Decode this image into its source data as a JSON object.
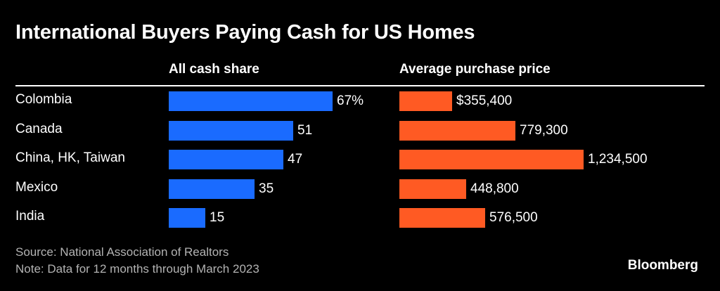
{
  "chart_data": {
    "type": "bar",
    "orientation": "horizontal",
    "title": "International Buyers Paying Cash for US Homes",
    "categories": [
      "Colombia",
      "Canada",
      "China, HK, Taiwan",
      "Mexico",
      "India"
    ],
    "series": [
      {
        "name": "All cash share",
        "values": [
          67,
          51,
          47,
          35,
          15
        ],
        "labels": [
          "67%",
          "51",
          "47",
          "35",
          "15"
        ],
        "color": "#1a6bff"
      },
      {
        "name": "Average purchase price",
        "values": [
          355400,
          779300,
          1234500,
          448800,
          576500
        ],
        "labels": [
          "$355,400",
          "779,300",
          "1,234,500",
          "448,800",
          "576,500"
        ],
        "color": "#ff5a23"
      }
    ],
    "source": "Source: National Association of Realtors",
    "note": "Note: Data for 12 months through March 2023"
  },
  "brand": "Bloomberg"
}
